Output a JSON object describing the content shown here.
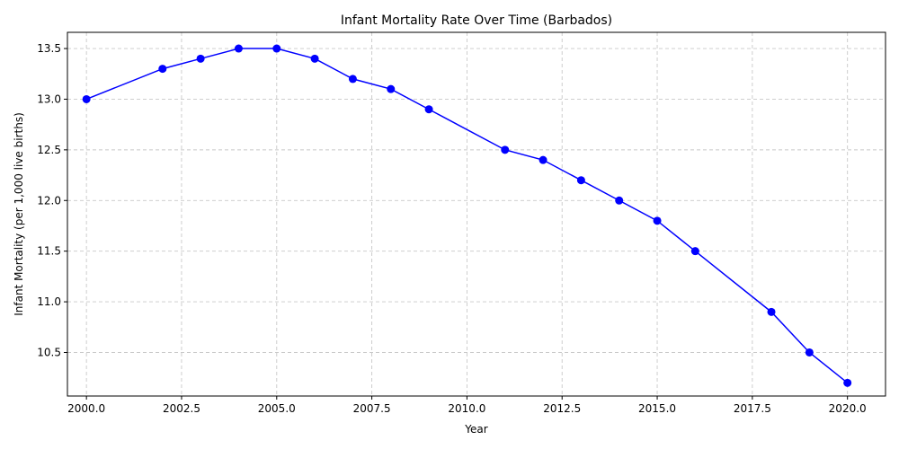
{
  "chart_data": {
    "type": "line",
    "title": "Infant Mortality Rate Over Time (Barbados)",
    "xlabel": "Year",
    "ylabel": "Infant Mortality (per 1,000 live births)",
    "xlim": [
      1999.5,
      2021.0
    ],
    "ylim": [
      10.07,
      13.66
    ],
    "xticks": [
      2000.0,
      2002.5,
      2005.0,
      2007.5,
      2010.0,
      2012.5,
      2015.0,
      2017.5,
      2020.0
    ],
    "xtick_labels": [
      "2000.0",
      "2002.5",
      "2005.0",
      "2007.5",
      "2010.0",
      "2012.5",
      "2015.0",
      "2017.5",
      "2020.0"
    ],
    "yticks": [
      10.5,
      11.0,
      11.5,
      12.0,
      12.5,
      13.0,
      13.5
    ],
    "ytick_labels": [
      "10.5",
      "11.0",
      "11.5",
      "12.0",
      "12.5",
      "13.0",
      "13.5"
    ],
    "grid": true,
    "series": [
      {
        "color": "#0000ff",
        "marker": "circle",
        "x": [
          2000,
          2002,
          2003,
          2004,
          2005,
          2006,
          2007,
          2008,
          2009,
          2011,
          2012,
          2013,
          2014,
          2015,
          2016,
          2018,
          2019,
          2020
        ],
        "y": [
          13.0,
          13.3,
          13.4,
          13.5,
          13.5,
          13.4,
          13.2,
          13.1,
          12.9,
          12.5,
          12.4,
          12.2,
          12.0,
          11.8,
          11.5,
          10.9,
          10.5,
          10.2
        ]
      }
    ]
  }
}
